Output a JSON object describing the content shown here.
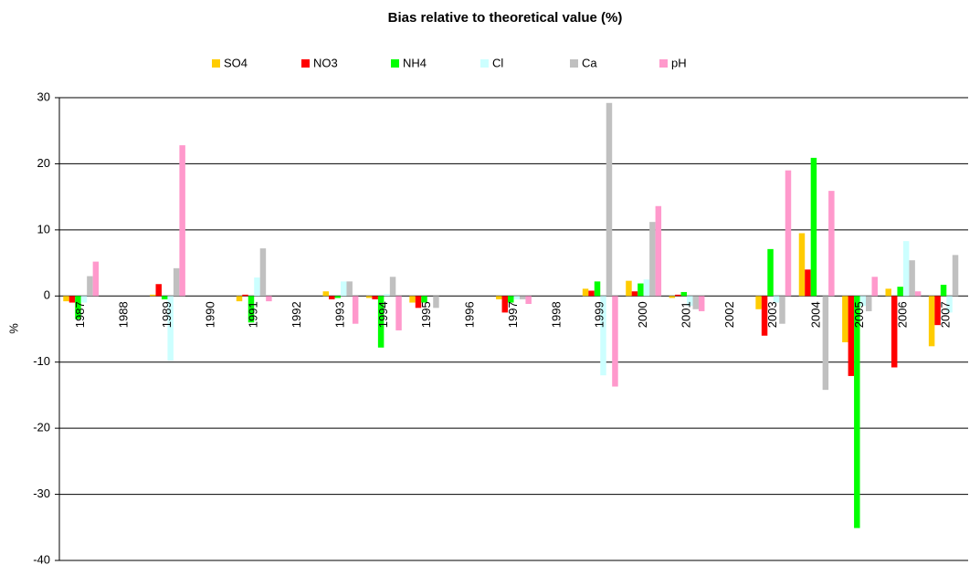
{
  "chart_data": {
    "type": "bar",
    "title": "Bias relative to theoretical value (%)",
    "y_label": "%",
    "categories": [
      "1987",
      "1988",
      "1989",
      "1990",
      "1991",
      "1992",
      "1993",
      "1994",
      "1995",
      "1996",
      "1997",
      "1998",
      "1999",
      "2000",
      "2001",
      "2002",
      "2003",
      "2004",
      "2005",
      "2006",
      "2007"
    ],
    "series": [
      {
        "name": "SO4",
        "color": "#ffcc00",
        "values": [
          -0.8,
          null,
          0.2,
          null,
          -0.8,
          null,
          0.7,
          -0.3,
          -1,
          null,
          -0.5,
          null,
          1.1,
          2.3,
          -0.3,
          null,
          -2,
          9.5,
          -7,
          1.1,
          -7.6
        ]
      },
      {
        "name": "NO3",
        "color": "#ff0000",
        "values": [
          -1,
          null,
          1.8,
          null,
          0.2,
          null,
          -0.5,
          -0.5,
          -1.8,
          null,
          -2.5,
          null,
          0.8,
          0.7,
          0.2,
          null,
          -6,
          4,
          -12.1,
          -10.8,
          -4.4
        ]
      },
      {
        "name": "NH4",
        "color": "#00ff00",
        "values": [
          -3.5,
          null,
          -0.5,
          null,
          -4,
          null,
          -0.3,
          -7.8,
          -1,
          null,
          -1,
          null,
          2.2,
          1.9,
          0.6,
          null,
          7.1,
          20.9,
          -35.1,
          1.4,
          1.7
        ]
      },
      {
        "name": "Cl",
        "color": "#ccffff",
        "values": [
          -1,
          null,
          -9.8,
          null,
          2.8,
          null,
          2.2,
          0.3,
          0,
          null,
          -0.5,
          null,
          -12,
          2.5,
          -1.5,
          null,
          -1,
          0,
          -1.5,
          8.3,
          -2.5
        ]
      },
      {
        "name": "Ca",
        "color": "#c0c0c0",
        "values": [
          3,
          null,
          4.2,
          null,
          7.2,
          null,
          2.2,
          2.9,
          -1.8,
          null,
          -0.5,
          null,
          29.2,
          11.2,
          -2,
          null,
          -4.2,
          -14.2,
          -2.3,
          5.4,
          6.2
        ]
      },
      {
        "name": "pH",
        "color": "#ff99cc",
        "values": [
          5.2,
          null,
          22.8,
          null,
          -0.8,
          null,
          -4.2,
          -5.2,
          null,
          null,
          -1.2,
          null,
          -13.7,
          13.6,
          -2.3,
          null,
          19,
          15.9,
          2.9,
          0.7,
          null
        ]
      }
    ],
    "ylim": [
      -40,
      30
    ],
    "yticks": [
      -40,
      -30,
      -20,
      -10,
      0,
      10,
      20,
      30
    ],
    "grid": true
  }
}
